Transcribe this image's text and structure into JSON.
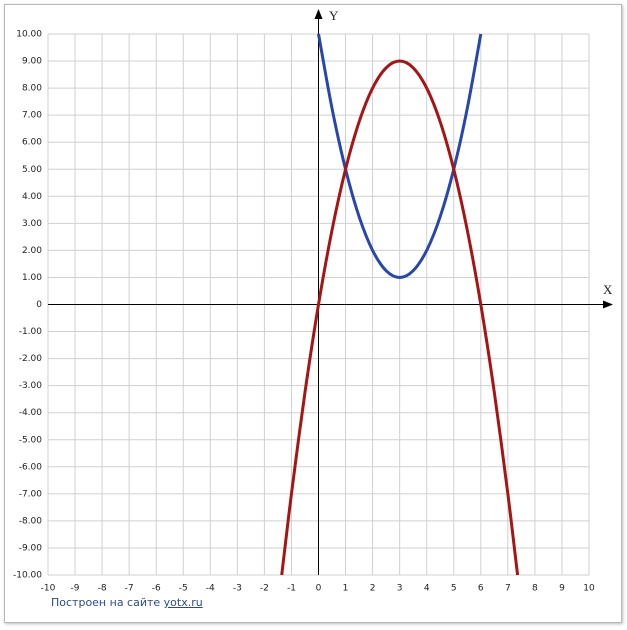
{
  "chart_data": {
    "type": "line",
    "x_label": "X",
    "y_label": "Y",
    "xlim": [
      -10,
      10
    ],
    "ylim": [
      -10,
      10
    ],
    "xticks": [
      -10,
      -9,
      -8,
      -7,
      -6,
      -5,
      -4,
      -3,
      -2,
      -1,
      0,
      1,
      2,
      3,
      4,
      5,
      6,
      7,
      8,
      9,
      10
    ],
    "yticks": [
      {
        "value": -10,
        "label": "-10.00"
      },
      {
        "value": -9,
        "label": "-9.00"
      },
      {
        "value": -8,
        "label": "-8.00"
      },
      {
        "value": -7,
        "label": "-7.00"
      },
      {
        "value": -6,
        "label": "-6.00"
      },
      {
        "value": -5,
        "label": "-5.00"
      },
      {
        "value": -4,
        "label": "-4.00"
      },
      {
        "value": -3,
        "label": "-3.00"
      },
      {
        "value": -2,
        "label": "-2.00"
      },
      {
        "value": -1,
        "label": "-1.00"
      },
      0,
      {
        "value": 1,
        "label": "1.00"
      },
      {
        "value": 2,
        "label": "2.00"
      },
      {
        "value": 3,
        "label": "3.00"
      },
      {
        "value": 4,
        "label": "4.00"
      },
      {
        "value": 5,
        "label": "5.00"
      },
      {
        "value": 6,
        "label": "6.00"
      },
      {
        "value": 7,
        "label": "7.00"
      },
      {
        "value": 8,
        "label": "8.00"
      },
      {
        "value": 9,
        "label": "9.00"
      },
      {
        "value": 10,
        "label": "10.00"
      }
    ],
    "grid": true,
    "series": [
      {
        "color": "#2746b0",
        "x": [
          0,
          0.5,
          1,
          1.5,
          2,
          2.5,
          3,
          3.5,
          4,
          4.5,
          5,
          5.5,
          6
        ],
        "values": [
          10,
          7.25,
          5,
          3.25,
          2,
          1.25,
          1,
          1.25,
          2,
          3.25,
          5,
          7.25,
          10
        ]
      },
      {
        "color": "#a81414",
        "x": [
          -1.36,
          -1,
          -0.5,
          0,
          0.5,
          1,
          1.5,
          2,
          2.5,
          3,
          3.5,
          4,
          4.5,
          5,
          5.5,
          6,
          6.5,
          7,
          7.36
        ],
        "values": [
          -10,
          -7,
          -3.25,
          0,
          2.75,
          5,
          6.75,
          8,
          8.75,
          9,
          8.75,
          8,
          6.75,
          5,
          2.75,
          0,
          -3.25,
          -7,
          -10
        ]
      }
    ]
  },
  "footer": {
    "credit": "Построен на сайте",
    "link": "yotx.ru"
  }
}
